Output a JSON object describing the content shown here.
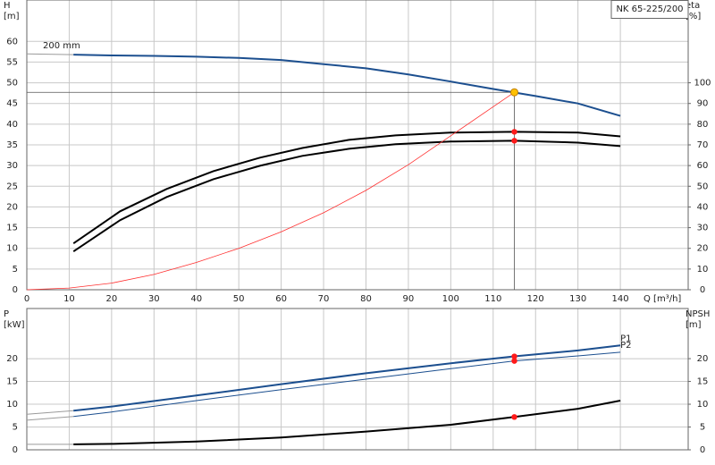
{
  "chart_data": [
    {
      "type": "line",
      "title": "NK 65-225/200",
      "xlabel": "Q [m³/h]",
      "ylabel": [
        "H",
        "[m]"
      ],
      "y2label": [
        "eta",
        "[%]"
      ],
      "xlim": [
        0,
        156
      ],
      "xticks": [
        0,
        10,
        20,
        30,
        40,
        50,
        60,
        70,
        80,
        90,
        100,
        110,
        120,
        130,
        140
      ],
      "ylim": [
        0,
        70
      ],
      "yticks": [
        0,
        5,
        10,
        15,
        20,
        25,
        30,
        35,
        40,
        45,
        50,
        55,
        60
      ],
      "y2lim": [
        0,
        140
      ],
      "y2ticks": [
        0,
        10,
        20,
        30,
        40,
        50,
        60,
        70,
        80,
        90,
        100
      ],
      "grid": true,
      "xtick_labels": true,
      "series": [
        {
          "color": "#9a9a9a",
          "width": 1,
          "x": [
            0,
            11
          ],
          "values": [
            57,
            56.8
          ]
        },
        {
          "name": "200 mm",
          "label_pos": "start",
          "color": "#1c4f8f",
          "width": 2,
          "x": [
            11,
            20,
            30,
            40,
            50,
            60,
            70,
            80,
            90,
            100,
            110,
            120,
            130,
            140
          ],
          "values": [
            56.8,
            56.6,
            56.5,
            56.3,
            56,
            55.5,
            54.5,
            53.5,
            52,
            50.3,
            48.5,
            46.8,
            45,
            42
          ]
        },
        {
          "color": "#000000",
          "width": 2,
          "axis": "y2",
          "x": [
            11,
            22,
            33,
            44,
            55,
            65,
            76,
            87,
            100,
            115,
            130,
            140
          ],
          "values": [
            22.4,
            37.9,
            48.7,
            57.3,
            63.8,
            68.5,
            72.4,
            74.6,
            75.9,
            76.3,
            75.9,
            74.1
          ]
        },
        {
          "color": "#000000",
          "width": 2,
          "axis": "y2",
          "x": [
            11,
            22,
            33,
            44,
            55,
            65,
            76,
            87,
            100,
            115,
            130,
            140
          ],
          "values": [
            18.5,
            33.6,
            44.8,
            53.4,
            59.9,
            64.7,
            68.1,
            70.3,
            71.6,
            72,
            71.1,
            69.4
          ]
        },
        {
          "color": "#ff3030",
          "width": 0.8,
          "x": [
            0,
            10,
            20,
            30,
            40,
            50,
            60,
            70,
            80,
            90,
            100,
            115
          ],
          "values": [
            0,
            0.4,
            1.6,
            3.7,
            6.6,
            10,
            14,
            18.6,
            24,
            30.2,
            37.2,
            47.7
          ]
        },
        {
          "marker": true,
          "color": "#ff1a1a",
          "axis": "y2",
          "x": [
            115,
            115
          ],
          "values": [
            76.3,
            72
          ]
        },
        {
          "marker": true,
          "guide": true,
          "color": "#ffc000",
          "x": [
            115
          ],
          "values": [
            47.7
          ]
        }
      ]
    },
    {
      "type": "line",
      "ylabel": [
        "P",
        "[kW]"
      ],
      "y2label": [
        "NPSH",
        "[m]"
      ],
      "xlim": [
        0,
        156
      ],
      "xticks": [
        0,
        10,
        20,
        30,
        40,
        50,
        60,
        70,
        80,
        90,
        100,
        110,
        120,
        130,
        140
      ],
      "ylim": [
        0,
        31
      ],
      "yticks": [
        0,
        5,
        10,
        15,
        20
      ],
      "y2lim": [
        0,
        31
      ],
      "y2ticks": [
        0,
        5,
        10,
        15,
        20
      ],
      "grid": true,
      "xtick_labels": false,
      "series": [
        {
          "color": "#9a9a9a",
          "width": 1,
          "x": [
            0,
            11
          ],
          "values": [
            7.8,
            8.6
          ]
        },
        {
          "color": "#9a9a9a",
          "width": 1,
          "x": [
            0,
            11
          ],
          "values": [
            6.5,
            7.3
          ]
        },
        {
          "color": "#9a9a9a",
          "width": 1,
          "axis": "y2",
          "x": [
            0,
            11
          ],
          "values": [
            1.2,
            1.2
          ]
        },
        {
          "name": "P1",
          "label_pos": "end",
          "color": "#1c4f8f",
          "width": 2,
          "x": [
            11,
            20,
            40,
            60,
            80,
            100,
            115,
            130,
            140
          ],
          "values": [
            8.6,
            9.5,
            11.9,
            14.4,
            16.8,
            19,
            20.5,
            21.8,
            22.9
          ]
        },
        {
          "name": "P2",
          "label_pos": "end",
          "color": "#1c4f8f",
          "width": 1,
          "x": [
            11,
            20,
            40,
            60,
            80,
            100,
            115,
            130,
            140
          ],
          "values": [
            7.3,
            8.3,
            10.8,
            13.2,
            15.5,
            17.8,
            19.5,
            20.6,
            21.4
          ]
        },
        {
          "color": "#000000",
          "width": 2,
          "axis": "y2",
          "x": [
            11,
            20,
            40,
            60,
            80,
            100,
            115,
            130,
            140
          ],
          "values": [
            1.2,
            1.3,
            1.8,
            2.7,
            4,
            5.5,
            7.2,
            9,
            10.8
          ]
        },
        {
          "marker": true,
          "color": "#ff1a1a",
          "x": [
            115,
            115
          ],
          "values": [
            20.5,
            19.5
          ]
        },
        {
          "marker": true,
          "color": "#ff1a1a",
          "axis": "y2",
          "x": [
            115
          ],
          "values": [
            7.2
          ]
        }
      ]
    }
  ]
}
